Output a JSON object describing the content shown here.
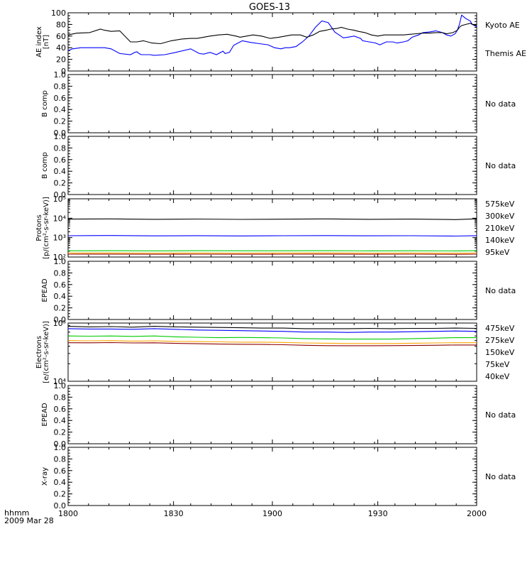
{
  "chart_data": {
    "type": "line",
    "title": "GOES-13",
    "x_ticks": [
      "1800",
      "1830",
      "1900",
      "1930",
      "2000"
    ],
    "footer": {
      "units": "hhmm",
      "date": "2009 Mar 28"
    },
    "colors": {
      "black": "#000000",
      "blue": "#0000ff",
      "green": "#00cc00",
      "orange": "#ffa500",
      "darkred": "#8b0000",
      "axis": "#000000"
    },
    "panels": [
      {
        "id": "ae",
        "ylabel": [
          "AE index",
          "[nT]"
        ],
        "scale": "linear",
        "ylim": [
          0,
          100
        ],
        "yticks": [
          "0",
          "20",
          "40",
          "60",
          "80",
          "100"
        ],
        "legend": [
          {
            "label": "Kyoto AE",
            "color": "#0000ff"
          },
          {
            "label": "Themis AE",
            "color": "#000000"
          }
        ],
        "series": [
          {
            "name": "Kyoto AE",
            "color": "#0000ff",
            "x": [
              0,
              4,
              12,
              20,
              26,
              30,
              34,
              40,
              48,
              58,
              62,
              64,
              66,
              68,
              70,
              72,
              76,
              80,
              90,
              100,
              114,
              122,
              126,
              132,
              138,
              144,
              146,
              150,
              154,
              158,
              162,
              170,
              178,
              186,
              192,
              198,
              202,
              206,
              212,
              218,
              224,
              230,
              236,
              242,
              248,
              252,
              256,
              260,
              266,
              272,
              274,
              280,
              286,
              290,
              296,
              302,
              306,
              312,
              316,
              320,
              326,
              330,
              336,
              342,
              348,
              352,
              356,
              360,
              362,
              364,
              366,
              370,
              374,
              376,
              380
            ],
            "y": [
              35,
              38,
              40,
              40,
              40,
              40,
              40,
              38,
              30,
              28,
              32,
              33,
              30,
              28,
              28,
              28,
              28,
              27,
              28,
              32,
              38,
              30,
              29,
              32,
              28,
              34,
              30,
              32,
              44,
              48,
              52,
              49,
              47,
              45,
              40,
              38,
              40,
              40,
              42,
              50,
              60,
              75,
              86,
              83,
              67,
              62,
              57,
              58,
              60,
              56,
              52,
              50,
              48,
              45,
              50,
              50,
              48,
              50,
              52,
              58,
              62,
              66,
              67,
              69,
              66,
              62,
              60,
              64,
              70,
              80,
              96,
              90,
              86,
              80,
              76
            ]
          },
          {
            "name": "Themis AE",
            "color": "#000000",
            "x": [
              0,
              8,
              20,
              30,
              34,
              40,
              48,
              58,
              64,
              70,
              78,
              86,
              96,
              106,
              114,
              120,
              126,
              132,
              140,
              148,
              156,
              160,
              166,
              172,
              180,
              188,
              196,
              202,
              208,
              216,
              222,
              228,
              234,
              240,
              244,
              250,
              254,
              260,
              266,
              270,
              276,
              282,
              288,
              294,
              300,
              306,
              312,
              318,
              324,
              330,
              336,
              342,
              348,
              352,
              358,
              362,
              364,
              366,
              370,
              374,
              376,
              380
            ],
            "y": [
              62,
              65,
              66,
              72,
              70,
              68,
              69,
              50,
              50,
              52,
              48,
              47,
              52,
              55,
              56,
              56,
              58,
              60,
              62,
              63,
              60,
              58,
              60,
              62,
              60,
              56,
              58,
              60,
              62,
              62,
              58,
              62,
              68,
              70,
              72,
              73,
              75,
              72,
              70,
              68,
              66,
              62,
              60,
              62,
              62,
              62,
              62,
              63,
              64,
              65,
              65,
              66,
              66,
              64,
              66,
              70,
              75,
              78,
              80,
              82,
              80,
              78
            ]
          }
        ]
      },
      {
        "id": "b1",
        "ylabel": [
          "B comp"
        ],
        "scale": "linear",
        "ylim": [
          0,
          1
        ],
        "yticks": [
          "0.0",
          "0.2",
          "0.4",
          "0.6",
          "0.8",
          "1.0"
        ],
        "nodata": "No data"
      },
      {
        "id": "b2",
        "ylabel": [
          "B comp"
        ],
        "scale": "linear",
        "ylim": [
          0,
          1
        ],
        "yticks": [
          "0.0",
          "0.2",
          "0.4",
          "0.6",
          "0.8",
          "1.0"
        ],
        "nodata": "No data"
      },
      {
        "id": "protons",
        "ylabel": [
          "Protons",
          "[p/(cm²-s-sr-keV)]"
        ],
        "scale": "log",
        "ylim": [
          100,
          100000
        ],
        "yticks": [
          "10²",
          "10³",
          "10⁴",
          "10⁵"
        ],
        "legend": [
          {
            "label": "575keV",
            "color": "#8b0000"
          },
          {
            "label": "300keV",
            "color": "#ffa500"
          },
          {
            "label": "210keV",
            "color": "#00cc00"
          },
          {
            "label": "140keV",
            "color": "#0000ff"
          },
          {
            "label": "95keV",
            "color": "#000000"
          }
        ],
        "series": [
          {
            "name": "95keV",
            "color": "#000000",
            "x": [
              0,
              40,
              80,
              120,
              160,
              200,
              240,
              280,
              320,
              360,
              380
            ],
            "y": [
              9000,
              9200,
              8800,
              9100,
              8700,
              8900,
              9200,
              8800,
              9000,
              8500,
              9300
            ]
          },
          {
            "name": "140keV",
            "color": "#0000ff",
            "x": [
              0,
              40,
              80,
              120,
              160,
              200,
              240,
              280,
              320,
              360,
              380
            ],
            "y": [
              1250,
              1280,
              1230,
              1260,
              1220,
              1250,
              1270,
              1240,
              1250,
              1200,
              1260
            ]
          },
          {
            "name": "210keV",
            "color": "#00cc00",
            "x": [
              0,
              40,
              80,
              120,
              160,
              200,
              240,
              280,
              320,
              360,
              380
            ],
            "y": [
              210,
              212,
              208,
              211,
              209,
              210,
              212,
              208,
              210,
              207,
              211
            ]
          },
          {
            "name": "300keV",
            "color": "#ffa500",
            "x": [
              0,
              40,
              80,
              120,
              160,
              200,
              240,
              280,
              320,
              360,
              380
            ],
            "y": [
              160,
              161,
              159,
              160,
              159,
              160,
              161,
              159,
              160,
              158,
              160
            ]
          },
          {
            "name": "575keV",
            "color": "#8b0000",
            "x": [
              0,
              40,
              80,
              120,
              160,
              200,
              240,
              280,
              320,
              360,
              380
            ],
            "y": [
              140,
              141,
              139,
              140,
              139,
              140,
              141,
              139,
              140,
              138,
              140
            ]
          }
        ]
      },
      {
        "id": "epead1",
        "ylabel": [
          "EPEAD"
        ],
        "scale": "linear",
        "ylim": [
          0,
          1
        ],
        "yticks": [
          "0.0",
          "0.2",
          "0.4",
          "0.6",
          "0.8",
          "1.0"
        ],
        "nodata": "No data"
      },
      {
        "id": "electrons",
        "ylabel": [
          "Electrons",
          "[e/(cm²-s-sr-keV)]"
        ],
        "scale": "log",
        "ylim": [
          10000,
          100000
        ],
        "yticks": [
          "10⁴",
          "10⁵"
        ],
        "legend": [
          {
            "label": "475keV",
            "color": "#8b0000"
          },
          {
            "label": "275keV",
            "color": "#ffa500"
          },
          {
            "label": "150keV",
            "color": "#00cc00"
          },
          {
            "label": "75keV",
            "color": "#0000ff"
          },
          {
            "label": "40keV",
            "color": "#000000"
          }
        ],
        "series": [
          {
            "name": "40keV",
            "color": "#000000",
            "x": [
              0,
              20,
              40,
              60,
              80,
              100,
              120,
              140,
              160,
              180,
              200,
              220,
              240,
              260,
              280,
              300,
              320,
              340,
              360,
              380
            ],
            "y": [
              88000,
              86000,
              87000,
              85000,
              88000,
              86000,
              85000,
              84000,
              83000,
              82000,
              82000,
              80000,
              80000,
              80000,
              81000,
              80000,
              81000,
              81000,
              82000,
              81000
            ]
          },
          {
            "name": "75keV",
            "color": "#0000ff",
            "x": [
              0,
              20,
              40,
              60,
              80,
              100,
              120,
              140,
              160,
              180,
              200,
              220,
              240,
              260,
              280,
              300,
              320,
              340,
              360,
              380
            ],
            "y": [
              80000,
              79000,
              79000,
              78000,
              80000,
              78000,
              76000,
              75000,
              74000,
              73000,
              72000,
              70000,
              70000,
              69000,
              70000,
              70000,
              71000,
              72000,
              73000,
              72000
            ]
          },
          {
            "name": "150keV",
            "color": "#00cc00",
            "x": [
              0,
              20,
              40,
              60,
              80,
              100,
              120,
              140,
              160,
              180,
              200,
              220,
              240,
              260,
              280,
              300,
              320,
              340,
              360,
              380
            ],
            "y": [
              60000,
              59500,
              60000,
              59000,
              60000,
              58000,
              57000,
              56000,
              56500,
              56000,
              55500,
              54000,
              53500,
              53000,
              53000,
              53000,
              54000,
              55000,
              56000,
              56000
            ]
          },
          {
            "name": "275keV",
            "color": "#ffa500",
            "x": [
              0,
              20,
              40,
              60,
              80,
              100,
              120,
              140,
              160,
              180,
              200,
              220,
              240,
              260,
              280,
              300,
              320,
              340,
              360,
              380
            ],
            "y": [
              50000,
              49500,
              50000,
              49000,
              49500,
              48500,
              48000,
              47500,
              47000,
              47000,
              46500,
              45500,
              45000,
              44500,
              44500,
              44500,
              45000,
              45500,
              46000,
              46000
            ]
          },
          {
            "name": "475keV",
            "color": "#8b0000",
            "x": [
              0,
              20,
              40,
              60,
              80,
              100,
              120,
              140,
              160,
              180,
              200,
              220,
              240,
              260,
              280,
              300,
              320,
              340,
              360,
              380
            ],
            "y": [
              46000,
              45800,
              46200,
              45500,
              45800,
              44800,
              44200,
              43500,
              43200,
              43000,
              42500,
              41500,
              41000,
              40800,
              40800,
              41000,
              41200,
              41500,
              42000,
              42000
            ]
          }
        ]
      },
      {
        "id": "epead2",
        "ylabel": [
          "EPEAD"
        ],
        "scale": "linear",
        "ylim": [
          0,
          1
        ],
        "yticks": [
          "0.0",
          "0.2",
          "0.4",
          "0.6",
          "0.8",
          "1.0"
        ],
        "nodata": "No data"
      },
      {
        "id": "xray",
        "ylabel": [
          "X-ray"
        ],
        "scale": "linear",
        "ylim": [
          0,
          1
        ],
        "yticks": [
          "0.0",
          "0.2",
          "0.4",
          "0.6",
          "0.8",
          "1.0"
        ],
        "nodata": "No data"
      }
    ]
  }
}
